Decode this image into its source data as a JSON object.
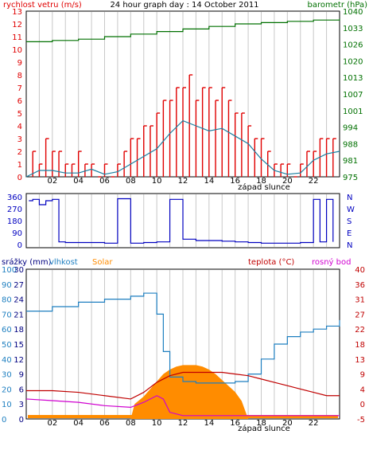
{
  "title": "24 hour graph day : 14 October 2011",
  "colors": {
    "wind": "#e00000",
    "gust_line": "#1a7fa0",
    "pressure": "#007000",
    "direction": "#0000c0",
    "rain_axis": "#000080",
    "humidity": "#1e7fc0",
    "solar": "#ff8c00",
    "temperature": "#c00000",
    "dewpoint": "#d000d0",
    "grid": "#c8c8c8"
  },
  "sunset_label": "západ slunce",
  "x_ticks": [
    "02",
    "04",
    "06",
    "08",
    "10",
    "12",
    "14",
    "16",
    "18",
    "20",
    "22"
  ],
  "chart_data": [
    {
      "type": "line",
      "title": "24 hour graph day : 14 October 2011",
      "left_axis_label": "rychlost vetru (m/s)",
      "right_axis_label": "barometr (hPa)",
      "left_ticks": [
        "13",
        "12",
        "11",
        "10",
        "9",
        "8",
        "7",
        "6",
        "5",
        "4",
        "3",
        "2",
        "1",
        "0"
      ],
      "right_ticks": [
        "1040",
        "1033",
        "1026",
        "1020",
        "1013",
        "1007",
        "1001",
        "994",
        "988",
        "981",
        "975"
      ],
      "ylim_left": [
        0,
        13
      ],
      "ylim_right": [
        975,
        1040
      ],
      "x_unit": "hour",
      "xlim": [
        0,
        24
      ],
      "series": [
        {
          "name": "rychlost vetru (m/s)",
          "style": "bars",
          "x": [
            0.5,
            1,
            1.5,
            2,
            2.5,
            3,
            3.5,
            4,
            4.5,
            5,
            5.5,
            6,
            6.5,
            7,
            7.5,
            8,
            8.5,
            9,
            9.5,
            10,
            10.5,
            11,
            11.5,
            12,
            12.5,
            13,
            13.5,
            14,
            14.5,
            15,
            15.5,
            16,
            16.5,
            17,
            17.5,
            18,
            18.5,
            19,
            19.5,
            20,
            20.5,
            21,
            21.5,
            22,
            22.5,
            23,
            23.5
          ],
          "values": [
            2,
            1,
            3,
            2,
            2,
            1,
            1,
            2,
            1,
            1,
            0,
            1,
            0,
            1,
            2,
            3,
            3,
            4,
            4,
            5,
            6,
            6,
            7,
            7,
            8,
            6,
            7,
            7,
            6,
            7,
            6,
            5,
            5,
            4,
            3,
            3,
            2,
            1,
            1,
            1,
            0,
            1,
            2,
            2,
            3,
            3,
            3
          ]
        },
        {
          "name": "wind average",
          "style": "line",
          "x": [
            0,
            1,
            2,
            3,
            4,
            5,
            6,
            7,
            8,
            9,
            10,
            11,
            12,
            13,
            14,
            15,
            16,
            17,
            18,
            19,
            20,
            21,
            22,
            23,
            24
          ],
          "values": [
            0,
            0.5,
            0.5,
            0.3,
            0.3,
            0.6,
            0.2,
            0.4,
            1,
            1.6,
            2.2,
            3.4,
            4.4,
            4,
            3.6,
            3.8,
            3.2,
            2.6,
            1.4,
            0.5,
            0.2,
            0.3,
            1.3,
            1.8,
            2
          ]
        },
        {
          "name": "barometr (hPa)",
          "axis": "right",
          "x": [
            0,
            2,
            4,
            6,
            8,
            10,
            12,
            14,
            16,
            18,
            20,
            22,
            24
          ],
          "values": [
            1028,
            1028.5,
            1029,
            1030,
            1031,
            1032,
            1033,
            1034,
            1035,
            1035.5,
            1036,
            1036.5,
            1037
          ]
        }
      ]
    },
    {
      "type": "line",
      "left_ticks": [
        "360",
        "270",
        "180",
        "90",
        "0"
      ],
      "right_ticks": [
        "N",
        "W",
        "S",
        "E",
        "N"
      ],
      "ylim": [
        0,
        360
      ],
      "x_unit": "hour",
      "xlim": [
        0,
        24
      ],
      "series": [
        {
          "name": "wind direction",
          "x": [
            0.2,
            0.5,
            1,
            1.5,
            2,
            2.5,
            3,
            4,
            5,
            6,
            7,
            8,
            9,
            10,
            11,
            12,
            13,
            14,
            15,
            16,
            17,
            18,
            19,
            20,
            21,
            22,
            22.5,
            23,
            23.5
          ],
          "values": [
            330,
            340,
            300,
            330,
            340,
            20,
            15,
            15,
            15,
            10,
            345,
            10,
            15,
            20,
            340,
            40,
            30,
            30,
            25,
            20,
            15,
            10,
            10,
            10,
            15,
            340,
            20,
            340,
            20
          ]
        }
      ]
    },
    {
      "type": "line",
      "left_axis_label": "srážky (mm)",
      "humidity_axis_label": "vlhkost",
      "solar_axis_label": "Solar",
      "right_axis_label": "teplota (°C)",
      "dewpoint_label": "rosný bod",
      "rain_ticks": [
        "30",
        "27",
        "24",
        "21",
        "18",
        "15",
        "12",
        "9",
        "6",
        "3",
        "0"
      ],
      "humidity_ticks": [
        "100",
        "90",
        "80",
        "70",
        "60",
        "50",
        "40",
        "30",
        "20",
        "10",
        "0"
      ],
      "temperature_ticks": [
        "40",
        "36",
        "31",
        "27",
        "22",
        "18",
        "13",
        "9",
        "4",
        "0",
        "-5"
      ],
      "ylim_rain": [
        0,
        30
      ],
      "ylim_humidity": [
        0,
        100
      ],
      "ylim_temperature": [
        -5,
        40
      ],
      "x_unit": "hour",
      "xlim": [
        0,
        24
      ],
      "series": [
        {
          "name": "vlhkost",
          "x": [
            0,
            2,
            4,
            6,
            8,
            9,
            9.5,
            10,
            10.5,
            11,
            12,
            13,
            14,
            15,
            16,
            17,
            18,
            19,
            20,
            21,
            22,
            23,
            24
          ],
          "values": [
            72,
            75,
            78,
            80,
            82,
            84,
            84,
            70,
            45,
            28,
            25,
            24,
            24,
            24,
            25,
            30,
            40,
            50,
            55,
            58,
            60,
            62,
            66
          ]
        },
        {
          "name": "teplota (°C)",
          "x": [
            0,
            2,
            4,
            6,
            8,
            9,
            10,
            11,
            12,
            13,
            14,
            15,
            16,
            17,
            18,
            19,
            20,
            21,
            22,
            23,
            24
          ],
          "values": [
            3.5,
            3.5,
            3,
            2,
            1,
            3,
            6,
            8,
            9,
            9,
            9,
            9,
            8.5,
            8,
            7,
            6,
            5,
            4,
            3,
            2,
            2
          ]
        },
        {
          "name": "rosný bod",
          "x": [
            0,
            2,
            4,
            6,
            8,
            9,
            10,
            10.5,
            11,
            12,
            13,
            14,
            15,
            16,
            17,
            18,
            19,
            20,
            21,
            22,
            23,
            24
          ],
          "values": [
            1,
            0.5,
            0,
            -1,
            -1.5,
            0,
            2,
            1,
            -3,
            -4,
            -4,
            -4,
            -4,
            -4,
            -4,
            -4,
            -4,
            -4,
            -4,
            -4,
            -4,
            -4
          ]
        },
        {
          "name": "Solar",
          "style": "area",
          "x": [
            0,
            8,
            8.3,
            9,
            9.5,
            10,
            10.5,
            11,
            11.5,
            12,
            12.5,
            13,
            13.5,
            14,
            14.5,
            15,
            15.5,
            16,
            16.5,
            17,
            24
          ],
          "values": [
            0,
            0,
            10,
            15,
            20,
            25,
            30,
            33,
            35,
            36,
            36,
            36,
            35,
            33,
            30,
            26,
            22,
            18,
            12,
            0,
            0
          ]
        }
      ]
    }
  ]
}
